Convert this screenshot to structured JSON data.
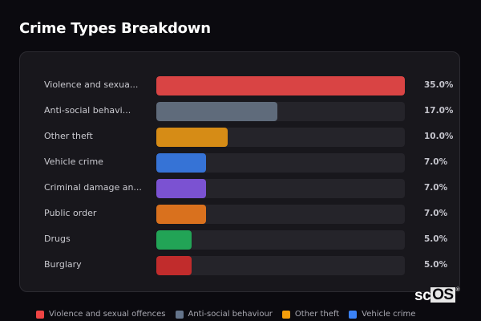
{
  "header": {
    "title": "Crime Types Breakdown"
  },
  "chart_data": {
    "type": "bar",
    "orientation": "horizontal",
    "title": "Crime Types Breakdown",
    "xlabel": "",
    "ylabel": "",
    "xlim": [
      0,
      35
    ],
    "grid": false,
    "legend_position": "bottom",
    "categories": [
      "Violence and sexual offences",
      "Anti-social behaviour",
      "Other theft",
      "Vehicle crime",
      "Criminal damage and arson",
      "Public order",
      "Drugs",
      "Burglary"
    ],
    "display_labels": [
      "Violence and sexua...",
      "Anti-social behavi...",
      "Other theft",
      "Vehicle crime",
      "Criminal damage an...",
      "Public order",
      "Drugs",
      "Burglary"
    ],
    "values": [
      35.0,
      17.0,
      10.0,
      7.0,
      7.0,
      7.0,
      5.0,
      5.0
    ],
    "value_labels": [
      "35.0%",
      "17.0%",
      "10.0%",
      "7.0%",
      "7.0%",
      "7.0%",
      "5.0%",
      "5.0%"
    ],
    "colors": [
      "#d94444",
      "#5f6b7b",
      "#d68c16",
      "#3673d6",
      "#7b52d2",
      "#d9711e",
      "#22a456",
      "#c12c2c"
    ]
  },
  "legend": [
    {
      "label": "Violence and sexual offences",
      "color": "#ef4444"
    },
    {
      "label": "Anti-social behaviour",
      "color": "#64748b"
    },
    {
      "label": "Other theft",
      "color": "#f59e0b"
    },
    {
      "label": "Vehicle crime",
      "color": "#3b82f6"
    }
  ],
  "watermark": {
    "prefix": "sc",
    "boxed": "OS",
    "mark": "®"
  }
}
